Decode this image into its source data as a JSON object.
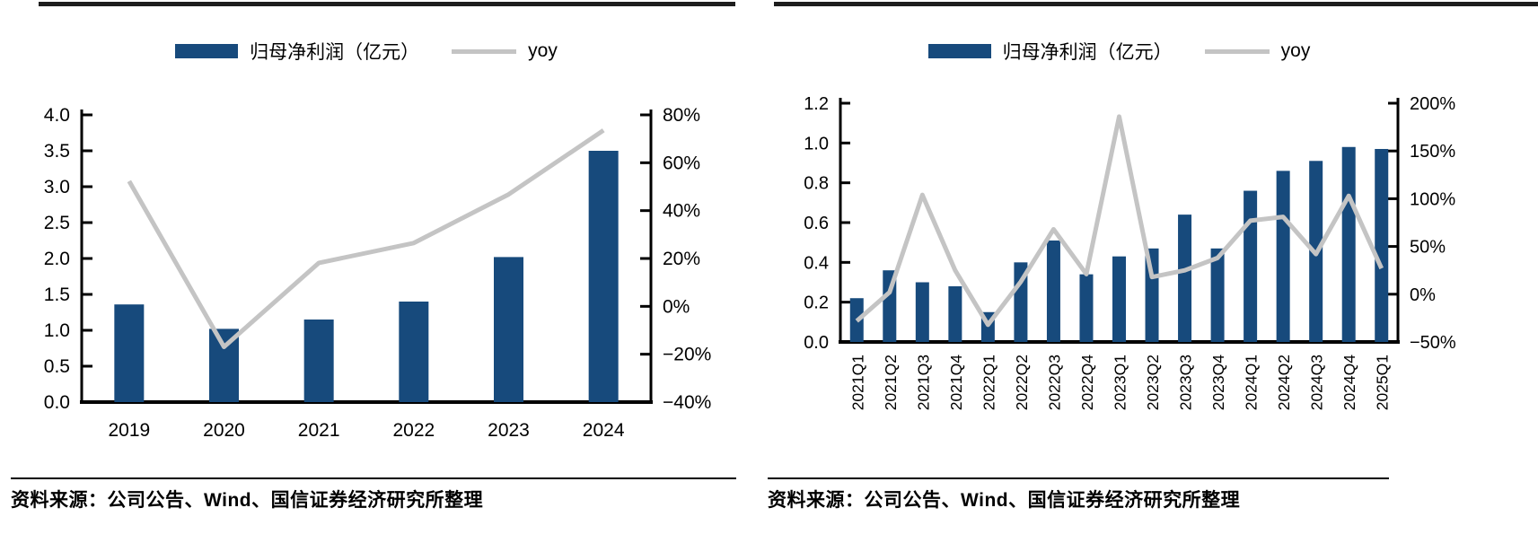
{
  "colors": {
    "bar": "#174A7C",
    "line": "#C4C4C4",
    "axis": "#000000",
    "rule": "#1D1D1D"
  },
  "panels": [
    {
      "source_note": "资料来源：公司公告、Wind、国信证券经济研究所整理"
    },
    {
      "source_note": "资料来源：公司公告、Wind、国信证券经济研究所整理"
    }
  ],
  "chart_data": [
    {
      "type": "bar",
      "combo": "bar+line-dual-axis",
      "title": "",
      "legend": [
        "归母净利润（亿元）",
        "yoy"
      ],
      "legend_position": "top-center",
      "grid": false,
      "categories": [
        "2019",
        "2020",
        "2021",
        "2022",
        "2023",
        "2024"
      ],
      "series": [
        {
          "name": "归母净利润（亿元）",
          "kind": "bar",
          "axis": "left",
          "unit": "亿元",
          "values": [
            1.36,
            1.02,
            1.15,
            1.4,
            2.02,
            3.5
          ]
        },
        {
          "name": "yoy",
          "kind": "line",
          "axis": "right",
          "unit": "%",
          "values": [
            50,
            -25,
            13,
            22,
            44,
            73
          ]
        }
      ],
      "left_axis": {
        "min": 0,
        "max": 4,
        "ticks": [
          "4.0",
          "3.5",
          "3.0",
          "2.5",
          "2.0",
          "1.5",
          "1.0",
          "0.5",
          "0.0"
        ]
      },
      "right_axis": {
        "min": -50,
        "max": 80,
        "ticks": [
          "80%",
          "60%",
          "40%",
          "20%",
          "0%",
          "−20%",
          "−40%"
        ]
      }
    },
    {
      "type": "bar",
      "combo": "bar+line-dual-axis",
      "title": "",
      "legend": [
        "归母净利润（亿元）",
        "yoy"
      ],
      "legend_position": "top-center",
      "grid": false,
      "categories": [
        "2021Q1",
        "2021Q2",
        "2021Q3",
        "2021Q4",
        "2022Q1",
        "2022Q2",
        "2022Q3",
        "2022Q4",
        "2023Q1",
        "2023Q2",
        "2023Q3",
        "2023Q4",
        "2024Q1",
        "2024Q2",
        "2024Q3",
        "2024Q4",
        "2025Q1"
      ],
      "series": [
        {
          "name": "归母净利润（亿元）",
          "kind": "bar",
          "axis": "left",
          "unit": "亿元",
          "values": [
            0.22,
            0.36,
            0.3,
            0.28,
            0.15,
            0.4,
            0.51,
            0.34,
            0.43,
            0.47,
            0.64,
            0.47,
            0.76,
            0.86,
            0.91,
            0.98,
            0.97
          ]
        },
        {
          "name": "yoy",
          "kind": "line",
          "axis": "right",
          "unit": "%",
          "values": [
            -28,
            2,
            104,
            25,
            -32,
            13,
            68,
            21,
            186,
            18,
            25,
            38,
            77,
            81,
            42,
            103,
            27
          ]
        }
      ],
      "left_axis": {
        "min": 0,
        "max": 1.2,
        "ticks": [
          "1.2",
          "1.0",
          "0.8",
          "0.6",
          "0.4",
          "0.2",
          "0.0"
        ]
      },
      "right_axis": {
        "min": -50,
        "max": 200,
        "ticks": [
          "200%",
          "150%",
          "100%",
          "50%",
          "0%",
          "−50%"
        ]
      }
    }
  ]
}
